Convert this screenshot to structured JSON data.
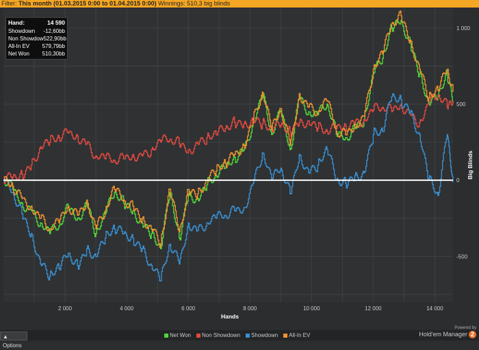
{
  "filter": {
    "label": "Filter:",
    "value": "This month (01.03.2015 0:00 to 01.04.2015 0:00)",
    "winnings": "Winnings: 510,3 big blinds"
  },
  "stats": [
    {
      "label": "Hand:",
      "value": "14 590"
    },
    {
      "label": "Showdown",
      "value": "-12,60bb"
    },
    {
      "label": "Non Showdow",
      "value": "522,90bb"
    },
    {
      "label": "All-In EV",
      "value": "579,79bb"
    },
    {
      "label": "Net Won",
      "value": "510,30bb"
    }
  ],
  "options_label": "Options",
  "brand": {
    "powered": "Powered by",
    "name": "Hold'em Manager",
    "badge": "2"
  },
  "chart_data": {
    "type": "line",
    "xlabel": "Hands",
    "ylabel": "Big Blinds",
    "xlim": [
      0,
      14590
    ],
    "ylim": [
      -800,
      1130
    ],
    "xticks": [
      2000,
      4000,
      6000,
      8000,
      10000,
      12000,
      14000
    ],
    "xtick_labels": [
      "2 000",
      "4 000",
      "6 000",
      "8 000",
      "10 000",
      "12 000",
      "14 000"
    ],
    "yticks": [
      -500,
      0,
      500,
      1000
    ],
    "ytick_labels": [
      "-500",
      "0",
      "500",
      "1 000"
    ],
    "grid": true,
    "legend_position": "bottom",
    "series": [
      {
        "name": "Net Won",
        "color": "#4fd63a",
        "x": [
          0,
          300,
          600,
          900,
          1200,
          1500,
          1800,
          2100,
          2400,
          2700,
          3000,
          3300,
          3600,
          3900,
          4200,
          4500,
          4800,
          5100,
          5400,
          5700,
          6000,
          6300,
          6600,
          6900,
          7200,
          7500,
          7800,
          8100,
          8400,
          8700,
          9000,
          9300,
          9600,
          9900,
          10200,
          10500,
          10800,
          11100,
          11400,
          11700,
          12000,
          12300,
          12600,
          12900,
          13200,
          13500,
          13800,
          14100,
          14400,
          14590
        ],
        "y": [
          0,
          -60,
          -150,
          -200,
          -280,
          -350,
          -300,
          -180,
          -250,
          -150,
          -350,
          -220,
          -80,
          -150,
          -200,
          -280,
          -350,
          -450,
          -80,
          -380,
          -90,
          -120,
          -30,
          30,
          80,
          150,
          200,
          380,
          560,
          300,
          450,
          200,
          550,
          450,
          430,
          500,
          300,
          280,
          350,
          400,
          700,
          800,
          1000,
          1050,
          900,
          700,
          500,
          550,
          700,
          510
        ]
      },
      {
        "name": "Non Showdown",
        "color": "#e04a40",
        "x": [
          0,
          300,
          600,
          900,
          1200,
          1500,
          1800,
          2100,
          2400,
          2700,
          3000,
          3300,
          3600,
          3900,
          4200,
          4500,
          4800,
          5100,
          5400,
          5700,
          6000,
          6300,
          6600,
          6900,
          7200,
          7500,
          7800,
          8100,
          8400,
          8700,
          9000,
          9300,
          9600,
          9900,
          10200,
          10500,
          10800,
          11100,
          11400,
          11700,
          12000,
          12300,
          12600,
          12900,
          13200,
          13500,
          13800,
          14100,
          14400,
          14590
        ],
        "y": [
          0,
          20,
          40,
          100,
          220,
          250,
          280,
          310,
          290,
          240,
          160,
          140,
          130,
          140,
          170,
          160,
          200,
          250,
          270,
          240,
          200,
          240,
          280,
          300,
          340,
          380,
          370,
          400,
          370,
          330,
          360,
          320,
          380,
          390,
          340,
          320,
          340,
          360,
          380,
          400,
          460,
          480,
          450,
          500,
          430,
          380,
          500,
          560,
          480,
          523
        ]
      },
      {
        "name": "Showdown",
        "color": "#3a8fd0",
        "x": [
          0,
          300,
          600,
          900,
          1200,
          1500,
          1800,
          2100,
          2400,
          2700,
          3000,
          3300,
          3600,
          3900,
          4200,
          4500,
          4800,
          5100,
          5400,
          5700,
          6000,
          6300,
          6600,
          6900,
          7200,
          7500,
          7800,
          8100,
          8400,
          8700,
          9000,
          9300,
          9600,
          9900,
          10200,
          10500,
          10800,
          11100,
          11400,
          11700,
          12000,
          12300,
          12600,
          12900,
          13200,
          13500,
          13800,
          14100,
          14400,
          14590
        ],
        "y": [
          0,
          -80,
          -220,
          -350,
          -550,
          -630,
          -580,
          -480,
          -560,
          -450,
          -500,
          -380,
          -320,
          -350,
          -380,
          -450,
          -560,
          -660,
          -420,
          -550,
          -280,
          -330,
          -280,
          -250,
          -230,
          -200,
          -180,
          -20,
          180,
          0,
          80,
          -90,
          170,
          50,
          100,
          200,
          0,
          -20,
          30,
          50,
          300,
          320,
          550,
          530,
          450,
          300,
          0,
          -100,
          300,
          -13
        ]
      },
      {
        "name": "All-In EV",
        "color": "#f0922e",
        "x": [
          0,
          300,
          600,
          900,
          1200,
          1500,
          1800,
          2100,
          2400,
          2700,
          3000,
          3300,
          3600,
          3900,
          4200,
          4500,
          4800,
          5100,
          5400,
          5700,
          6000,
          6300,
          6600,
          6900,
          7200,
          7500,
          7800,
          8100,
          8400,
          8700,
          9000,
          9300,
          9600,
          9900,
          10200,
          10500,
          10800,
          11100,
          11400,
          11700,
          12000,
          12300,
          12600,
          12900,
          13200,
          13500,
          13800,
          14100,
          14400,
          14590
        ],
        "y": [
          0,
          -40,
          -120,
          -170,
          -250,
          -320,
          -280,
          -170,
          -230,
          -130,
          -320,
          -200,
          -60,
          -130,
          -170,
          -250,
          -320,
          -420,
          -60,
          -340,
          -60,
          -90,
          0,
          60,
          110,
          170,
          230,
          400,
          580,
          330,
          470,
          230,
          570,
          480,
          450,
          520,
          320,
          300,
          370,
          420,
          730,
          830,
          1030,
          1080,
          920,
          730,
          540,
          590,
          730,
          580
        ]
      }
    ]
  }
}
